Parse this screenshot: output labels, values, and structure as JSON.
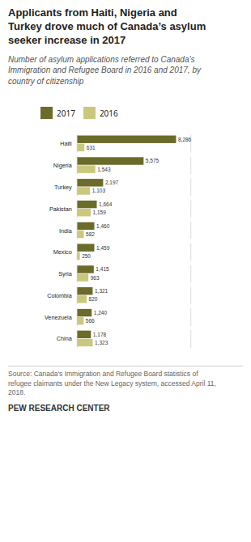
{
  "chart_data": {
    "type": "bar",
    "orientation": "horizontal",
    "title": "Applicants from Haiti, Nigeria and\nTurkey drove much of Canada’s asylum\nseeker increase in 2017",
    "subtitle": "Number of asylum applications referred to Canada’s\nImmigration and Refugee Board in 2016 and 2017, by\ncountry of citizenship",
    "annotations": [
      "Source: Canada's Immigration and Refugee Board statistics of\nrefugee claimants under the New Legacy system, accessed April 11,\n2018.",
      "PEW RESEARCH CENTER"
    ],
    "categories": [
      "Haiti",
      "Nigeria",
      "Turkey",
      "Pakistan",
      "India",
      "Mexico",
      "Syria",
      "Colombia",
      "Venezuela",
      "China"
    ],
    "series": [
      {
        "name": "2017",
        "color": "#6b6b2a",
        "values": [
          8286,
          5575,
          2197,
          1664,
          1460,
          1459,
          1415,
          1321,
          1240,
          1178
        ],
        "value_labels": [
          "8,286",
          "5,575",
          "2,197",
          "1,664",
          "1,460",
          "1,459",
          "1,415",
          "1,321",
          "1,240",
          "1,178"
        ]
      },
      {
        "name": "2016",
        "color": "#c9c87d",
        "values": [
          631,
          1543,
          1103,
          1159,
          582,
          250,
          963,
          820,
          566,
          1323
        ],
        "value_labels": [
          "631",
          "1,543",
          "1,103",
          "1,159",
          "582",
          "250",
          "963",
          "820",
          "566",
          "1,323"
        ]
      }
    ],
    "xlim": [
      0,
      9500
    ],
    "data_labels": true,
    "tick_labels": "y",
    "legend": "top",
    "grid": false
  }
}
